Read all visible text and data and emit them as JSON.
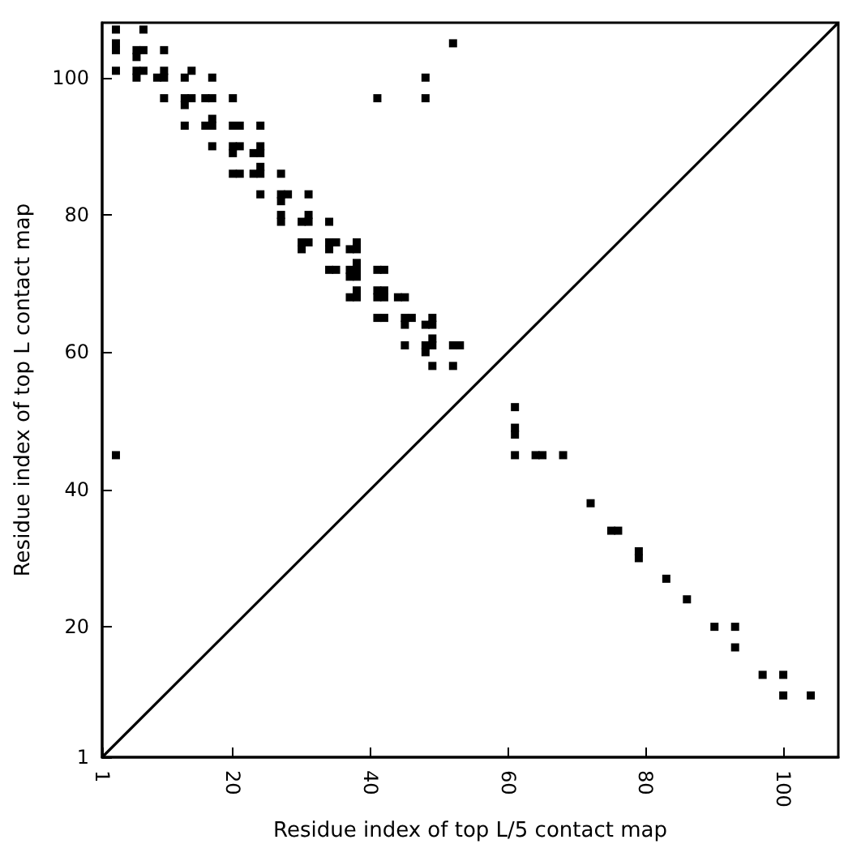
{
  "chart_data": {
    "type": "scatter",
    "xlabel": "Residue index of top L/5 contact map",
    "ylabel": "Residue index of top L contact map",
    "marker": "square",
    "grid": false,
    "xlim": [
      1,
      108
    ],
    "ylim": [
      1,
      108
    ],
    "xticks": [
      1,
      20,
      40,
      60,
      80,
      100
    ],
    "yticks": [
      1,
      20,
      40,
      60,
      80,
      100
    ],
    "series": [
      {
        "color": "#000000",
        "x": [
          3,
          7,
          3,
          3,
          6,
          6,
          7,
          10,
          3,
          6,
          6,
          7,
          9,
          10,
          10,
          14,
          13,
          10,
          13,
          13,
          14,
          16,
          17,
          17,
          20,
          13,
          16,
          17,
          17,
          20,
          21,
          24,
          17,
          20,
          20,
          21,
          23,
          24,
          24,
          20,
          21,
          23,
          24,
          24,
          27,
          24,
          27,
          27,
          28,
          31,
          27,
          27,
          30,
          31,
          31,
          34,
          30,
          30,
          31,
          34,
          34,
          35,
          38,
          37,
          38,
          34,
          35,
          37,
          37,
          38,
          38,
          38,
          41,
          42,
          37,
          38,
          38,
          41,
          41,
          42,
          42,
          44,
          45,
          41,
          42,
          45,
          46,
          45,
          48,
          49,
          49,
          45,
          48,
          48,
          49,
          49,
          52,
          53,
          49,
          52,
          41,
          48,
          48,
          52,
          3
        ],
        "values": [
          107,
          107,
          105,
          104,
          104,
          103,
          104,
          104,
          101,
          101,
          100,
          101,
          100,
          100,
          101,
          101,
          100,
          97,
          97,
          96,
          97,
          97,
          97,
          100,
          97,
          93,
          93,
          93,
          94,
          93,
          93,
          93,
          90,
          90,
          89,
          90,
          89,
          89,
          90,
          86,
          86,
          86,
          86,
          87,
          86,
          83,
          83,
          82,
          83,
          83,
          80,
          79,
          79,
          79,
          80,
          79,
          76,
          75,
          76,
          76,
          75,
          76,
          76,
          75,
          75,
          72,
          72,
          72,
          71,
          72,
          71,
          73,
          72,
          72,
          68,
          68,
          69,
          68,
          69,
          68,
          69,
          68,
          68,
          65,
          65,
          65,
          65,
          64,
          64,
          64,
          65,
          61,
          61,
          60,
          61,
          62,
          61,
          61,
          58,
          58,
          97,
          100,
          97,
          105,
          45
        ]
      },
      {
        "color": "#000000",
        "x": [
          61,
          61,
          61,
          61,
          64,
          65,
          68,
          72,
          75,
          76,
          79,
          79,
          83,
          86,
          90,
          93,
          93,
          97,
          100,
          100,
          104
        ],
        "values": [
          52,
          49,
          48,
          45,
          45,
          45,
          45,
          38,
          34,
          34,
          31,
          30,
          27,
          24,
          20,
          20,
          17,
          13,
          13,
          10,
          10
        ]
      },
      {
        "type": "line",
        "marker": "none",
        "color": "#000000",
        "x": [
          1,
          108
        ],
        "values": [
          1,
          108
        ]
      }
    ]
  }
}
